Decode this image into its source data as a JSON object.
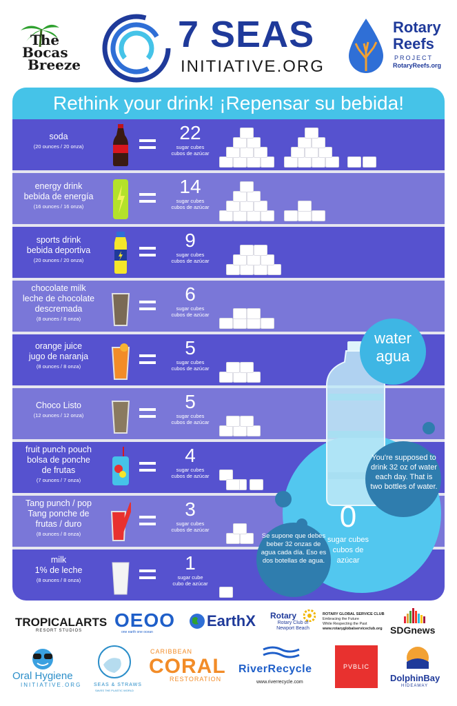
{
  "header": {
    "bocas_logo": [
      "The",
      "Bocas",
      "Breeze"
    ],
    "seas_title": "7 SEAS",
    "seas_subtitle": "INITIATIVE.ORG",
    "reefs_line1": "Rotary",
    "reefs_line2": "Reefs",
    "reefs_project": "PROJECT",
    "reefs_url": "RotaryReefs.org"
  },
  "banner": "Rethink your drink! ¡Repensar su bebida!",
  "rows": [
    {
      "name": [
        "soda"
      ],
      "oz": "(20 ounces / 20 onza)",
      "count": "22",
      "unit": [
        "sugar cubes",
        "cubos de azúcar"
      ],
      "drink_icon": "soda-bottle-icon"
    },
    {
      "name": [
        "energy drink",
        "bebida de energía"
      ],
      "oz": "(16 ounces / 16 onza)",
      "count": "14",
      "unit": [
        "sugar cubes",
        "cubos de azúcar"
      ],
      "drink_icon": "energy-can-icon"
    },
    {
      "name": [
        "sports drink",
        "bebida deportiva"
      ],
      "oz": "(20 ounces / 20 onza)",
      "count": "9",
      "unit": [
        "sugar cubes",
        "cubos de azúcar"
      ],
      "drink_icon": "sports-bottle-icon"
    },
    {
      "name": [
        "chocolate milk",
        "leche de chocolate",
        "descremada"
      ],
      "oz": "(8 ounces / 8 onza)",
      "count": "6",
      "unit": [
        "sugar cubes",
        "cubos de azúcar"
      ],
      "drink_icon": "chocolate-glass-icon"
    },
    {
      "name": [
        "orange juice",
        "jugo de naranja"
      ],
      "oz": "(8 ounces / 8 onza)",
      "count": "5",
      "unit": [
        "sugar cubes",
        "cubos de azúcar"
      ],
      "drink_icon": "juice-glass-icon"
    },
    {
      "name": [
        "Choco Listo"
      ],
      "oz": "(12 ounces / 12 onza)",
      "count": "5",
      "unit": [
        "sugar cubes",
        "cubos de azúcar"
      ],
      "drink_icon": "choco-glass-icon"
    },
    {
      "name": [
        "fruit punch pouch",
        "bolsa de ponche",
        "de frutas"
      ],
      "oz": "(7 ounces / 7 onza)",
      "count": "4",
      "unit": [
        "sugar cubes",
        "cubos de azúcar"
      ],
      "drink_icon": "punch-pouch-icon"
    },
    {
      "name": [
        "Tang punch / pop",
        "Tang ponche de",
        "frutas / duro"
      ],
      "oz": "(8 ounces / 8 onza)",
      "count": "3",
      "unit": [
        "sugar cubes",
        "cubos de azúcar"
      ],
      "drink_icon": "tang-glass-icon"
    },
    {
      "name": [
        "milk",
        "1% de leche"
      ],
      "oz": "(8 ounces / 8 onza)",
      "count": "1",
      "unit": [
        "sugar cube",
        "cubo de azúcar"
      ],
      "drink_icon": "milk-glass-icon"
    }
  ],
  "water": {
    "label": [
      "water",
      "agua"
    ],
    "count": "0",
    "unit": [
      "sugar cubes",
      "cubos de",
      "azúcar"
    ],
    "message_en": "You're supposed to drink 32 oz of water each day. That is two bottles of water.",
    "message_es": "Se supone que debes beber 32 onzas de agua cada día. Eso es dos botellas de agua."
  },
  "footer": {
    "tropical": "TROPICALARTS",
    "tropical_sub": "RESORT STUDIOS",
    "oeo": "OEOO",
    "oeo_sub": "one earth one ocean",
    "earthx": "EarthX",
    "rotary": "Rotary",
    "rotary_sub": "Rotary Club of Newport Beach",
    "rgsc": [
      "ROTARY GLOBAL SERVICE CLUB",
      "Embracing the Future",
      "While Respecting the Past",
      "www.rotaryglobalserviceclub.org"
    ],
    "sdg": "SDGnews",
    "oral": "Oral Hygiene",
    "oral_sub": "INITIATIVE.ORG",
    "seas_straws": "SEAS & STRAWS",
    "seas_straws_sub": "SAVES THE PLASTIC WORLD",
    "caribbean": "CARIBBEAN",
    "coral": "CORAL",
    "restoration": "RESTORATION",
    "river": "RiverRecycle",
    "river_url": "www.riverrecycle.com",
    "pvblic": "PVBLIC",
    "dolphin": "DolphinBay",
    "dolphin_sub": "HIDEAWAY"
  }
}
